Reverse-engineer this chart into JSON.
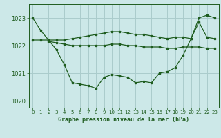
{
  "title": "Graphe pression niveau de la mer (hPa)",
  "bg_color": "#cce8e8",
  "grid_color": "#aacccc",
  "line_color": "#1e5c1e",
  "xlim": [
    -0.5,
    23.5
  ],
  "ylim": [
    1019.75,
    1023.5
  ],
  "yticks": [
    1020,
    1021,
    1022,
    1023
  ],
  "xticks": [
    0,
    1,
    2,
    3,
    4,
    5,
    6,
    7,
    8,
    9,
    10,
    11,
    12,
    13,
    14,
    15,
    16,
    17,
    18,
    19,
    20,
    21,
    22,
    23
  ],
  "series": [
    {
      "x": [
        0,
        1,
        2,
        3,
        4,
        5,
        6,
        7,
        8,
        9,
        10,
        11,
        12,
        13,
        14,
        15,
        16,
        17,
        18,
        19,
        20,
        21,
        22,
        23
      ],
      "y": [
        1023.0,
        1022.55,
        1022.2,
        1021.85,
        1021.3,
        1020.65,
        1020.6,
        1020.55,
        1020.45,
        1020.85,
        1020.95,
        1020.9,
        1020.85,
        1020.65,
        1020.7,
        1020.65,
        1021.0,
        1021.05,
        1021.2,
        1021.65,
        1022.25,
        1023.0,
        1023.1,
        1023.0
      ]
    },
    {
      "x": [
        0,
        1,
        2,
        3,
        4,
        5,
        6,
        7,
        8,
        9,
        10,
        11,
        12,
        13,
        14,
        15,
        16,
        17,
        18,
        19,
        20,
        21,
        22,
        23
      ],
      "y": [
        1022.2,
        1022.2,
        1022.2,
        1022.2,
        1022.2,
        1022.25,
        1022.3,
        1022.35,
        1022.4,
        1022.45,
        1022.5,
        1022.5,
        1022.45,
        1022.4,
        1022.4,
        1022.35,
        1022.3,
        1022.25,
        1022.3,
        1022.3,
        1022.25,
        1022.85,
        1022.3,
        1022.25
      ]
    },
    {
      "x": [
        2,
        3,
        4,
        5,
        6,
        7,
        8,
        9,
        10,
        11,
        12,
        13,
        14,
        15,
        16,
        17,
        18,
        19,
        20,
        21,
        22,
        23
      ],
      "y": [
        1022.15,
        1022.1,
        1022.05,
        1022.0,
        1022.0,
        1022.0,
        1022.0,
        1022.0,
        1022.05,
        1022.05,
        1022.0,
        1022.0,
        1021.95,
        1021.95,
        1021.95,
        1021.9,
        1021.9,
        1021.95,
        1021.95,
        1021.95,
        1021.9,
        1021.9
      ]
    }
  ]
}
